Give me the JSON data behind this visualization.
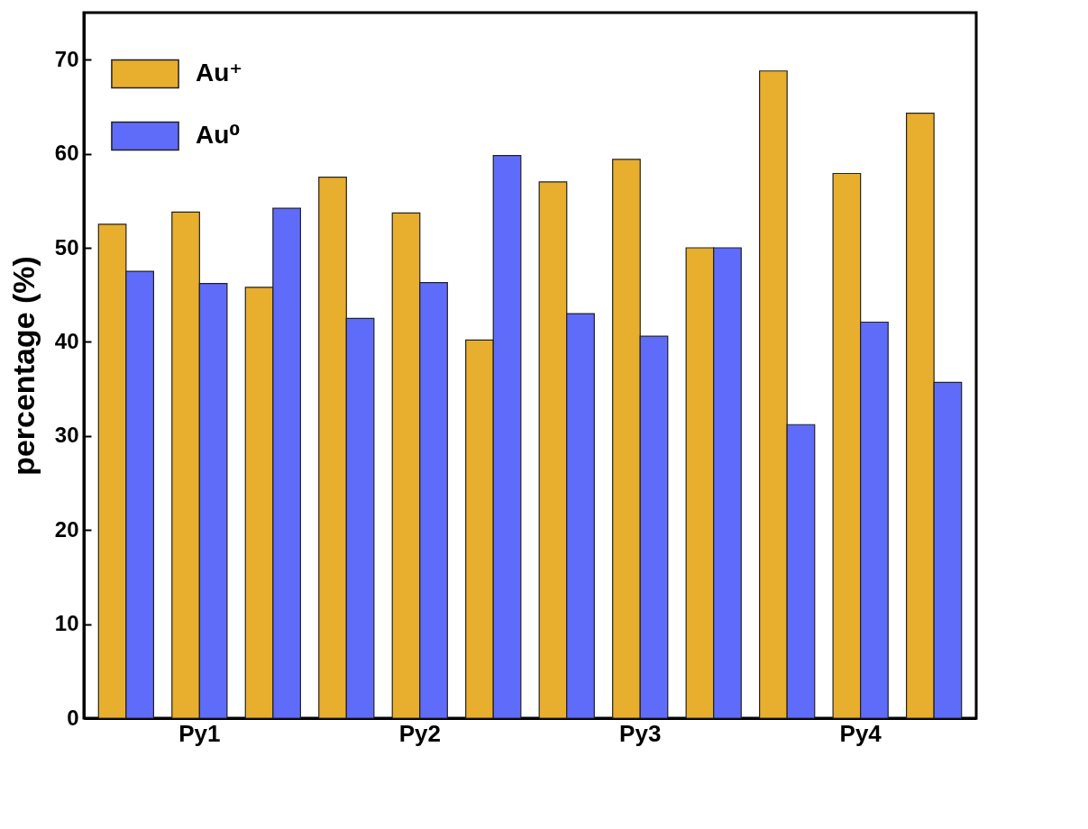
{
  "chart_data": {
    "type": "bar",
    "ylabel": "percentage (%)",
    "categories": [
      null,
      "Py1",
      null,
      null,
      "Py2",
      null,
      null,
      "Py3",
      null,
      null,
      "Py4",
      null
    ],
    "series": [
      {
        "name": "Au⁺",
        "color": "#e8ae2e",
        "values": [
          52.5,
          53.8,
          45.8,
          57.5,
          53.7,
          40.2,
          57.0,
          59.4,
          50.0,
          68.8,
          57.9,
          64.3
        ]
      },
      {
        "name": "Au⁰",
        "color": "#5f6cfa",
        "values": [
          47.5,
          46.2,
          54.2,
          42.5,
          46.3,
          59.8,
          43.0,
          40.6,
          50.0,
          31.2,
          42.1,
          35.7
        ]
      }
    ],
    "ylim": [
      0,
      75
    ],
    "yticks": [
      0,
      10,
      20,
      30,
      40,
      50,
      60,
      70
    ],
    "grid": false,
    "legend": "top left"
  }
}
